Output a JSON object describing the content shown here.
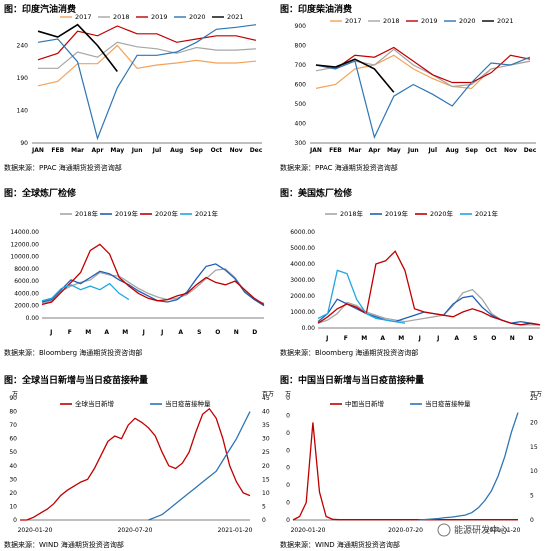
{
  "sources": {
    "ppac": "数据来源：PPAC  海通期货投资咨询部",
    "bloomberg": "数据来源：Bloomberg  海通期货投资咨询部",
    "wind": "数据来源：WIND  海通期货投资咨询部"
  },
  "watermark": "能源研发中心",
  "colors": {
    "y2017": "#f4a259",
    "y2018": "#a6a6a6",
    "y2019": "#c00000",
    "y2020": "#2e75b6",
    "y2021": "#000000",
    "r2018": "#a6a6a6",
    "r2019": "#1f5fb5",
    "r2020": "#c00000",
    "r2021": "#1ea7e1"
  },
  "chart_data": [
    {
      "id": "gasoline",
      "type": "line",
      "title": "图：印度汽油消费",
      "months": [
        "JAN",
        "FEB",
        "Mar",
        "Apr",
        "May",
        "Jun",
        "Jul",
        "Aug",
        "Sep",
        "Oct",
        "Nov",
        "Dec"
      ],
      "yticks": [
        "90",
        "140",
        "190",
        "240"
      ],
      "ylim": [
        90,
        270
      ],
      "legend": [
        "2017",
        "2018",
        "2019",
        "2020",
        "2021"
      ],
      "series": [
        {
          "name": "2017",
          "color_key": "y2017",
          "values": [
            178,
            185,
            212,
            212,
            240,
            205,
            210,
            213,
            217,
            213,
            213,
            216
          ]
        },
        {
          "name": "2018",
          "color_key": "y2018",
          "values": [
            205,
            205,
            230,
            222,
            245,
            238,
            235,
            228,
            237,
            233,
            233,
            235
          ]
        },
        {
          "name": "2019",
          "color_key": "y2019",
          "values": [
            218,
            228,
            262,
            255,
            270,
            258,
            258,
            245,
            250,
            255,
            255,
            248
          ]
        },
        {
          "name": "2020",
          "color_key": "y2020",
          "values": [
            245,
            250,
            215,
            97,
            175,
            225,
            225,
            230,
            245,
            265,
            268,
            272
          ]
        },
        {
          "name": "2021",
          "color_key": "y2021",
          "values": [
            262,
            253,
            272,
            240,
            200
          ]
        }
      ]
    },
    {
      "id": "diesel",
      "type": "line",
      "title": "图：印度柴油消费",
      "months": [
        "JAN",
        "FEB",
        "Mar",
        "Apr",
        "May",
        "Jun",
        "Jul",
        "Aug",
        "Sep",
        "Oct",
        "Nov",
        "Dec"
      ],
      "yticks": [
        "300",
        "400",
        "500",
        "600",
        "700",
        "800",
        "900"
      ],
      "ylim": [
        300,
        900
      ],
      "legend": [
        "2017",
        "2018",
        "2019",
        "2020",
        "2021"
      ],
      "series": [
        {
          "name": "2017",
          "color_key": "y2017",
          "values": [
            580,
            600,
            680,
            700,
            750,
            680,
            630,
            590,
            580,
            680,
            700,
            720
          ]
        },
        {
          "name": "2018",
          "color_key": "y2018",
          "values": [
            670,
            690,
            720,
            700,
            780,
            700,
            650,
            590,
            600,
            680,
            700,
            720
          ]
        },
        {
          "name": "2019",
          "color_key": "y2019",
          "values": [
            700,
            680,
            750,
            740,
            790,
            720,
            650,
            610,
            610,
            660,
            750,
            730
          ]
        },
        {
          "name": "2020",
          "color_key": "y2020",
          "values": [
            700,
            680,
            720,
            330,
            540,
            600,
            550,
            490,
            610,
            710,
            700,
            740
          ]
        },
        {
          "name": "2021",
          "color_key": "y2021",
          "values": [
            700,
            690,
            730,
            680,
            560
          ]
        }
      ]
    },
    {
      "id": "global_maint",
      "type": "line",
      "title": "图：全球炼厂检修",
      "months": [
        "J",
        "F",
        "M",
        "A",
        "M",
        "J",
        "J",
        "A",
        "S",
        "O",
        "N",
        "D"
      ],
      "yticks": [
        "0.00",
        "2000.00",
        "4000.00",
        "6000.00",
        "8000.00",
        "10000.00",
        "12000.00",
        "14000.00"
      ],
      "ylim": [
        0,
        14000
      ],
      "legend": [
        "2018年",
        "2019年",
        "2020年",
        "2021年"
      ],
      "series": [
        {
          "name": "2018年",
          "color_key": "r2018",
          "values": [
            2400,
            2800,
            4400,
            5200,
            5800,
            6200,
            7400,
            7000,
            6800,
            5800,
            4800,
            4000,
            3400,
            3000,
            3200,
            3800,
            5000,
            6400,
            7800,
            8000,
            6600,
            4400,
            3000,
            2400
          ]
        },
        {
          "name": "2019年",
          "color_key": "r2019",
          "values": [
            2600,
            3000,
            4600,
            6200,
            5600,
            6600,
            7600,
            7200,
            6200,
            5400,
            4400,
            3600,
            2800,
            2600,
            3000,
            4200,
            6400,
            8400,
            8800,
            7800,
            6400,
            4200,
            3000,
            2000
          ]
        },
        {
          "name": "2020年",
          "color_key": "r2020",
          "values": [
            2200,
            2600,
            4200,
            5800,
            7400,
            11000,
            12000,
            10400,
            6600,
            5200,
            4000,
            3200,
            2800,
            3000,
            3600,
            4000,
            5400,
            6600,
            5800,
            5400,
            6000,
            4600,
            3200,
            2200
          ]
        },
        {
          "name": "2021年",
          "color_key": "r2021",
          "values": [
            2800,
            3200,
            4800,
            5400,
            4600,
            5200,
            4600,
            5600,
            4000,
            3000
          ]
        }
      ]
    },
    {
      "id": "us_maint",
      "type": "line",
      "title": "图：美国炼厂检修",
      "months": [
        "J",
        "F",
        "M",
        "A",
        "M",
        "J",
        "J",
        "A",
        "S",
        "O",
        "N",
        "D"
      ],
      "yticks": [
        "0.00",
        "1000.00",
        "2000.00",
        "3000.00",
        "4000.00",
        "5000.00",
        "6000.00"
      ],
      "ylim": [
        0,
        6000
      ],
      "legend": [
        "2018年",
        "2019年",
        "2020年",
        "2021年"
      ],
      "series": [
        {
          "name": "2018年",
          "color_key": "r2018",
          "values": [
            300,
            500,
            900,
            1600,
            1400,
            1000,
            800,
            600,
            500,
            400,
            500,
            600,
            700,
            800,
            1400,
            2200,
            2400,
            1800,
            900,
            500,
            300,
            200,
            200,
            200
          ]
        },
        {
          "name": "2019年",
          "color_key": "r2019",
          "values": [
            400,
            900,
            1800,
            1500,
            1200,
            900,
            700,
            500,
            400,
            600,
            800,
            1000,
            900,
            800,
            1500,
            1900,
            2000,
            1300,
            800,
            500,
            300,
            400,
            300,
            200
          ]
        },
        {
          "name": "2020年",
          "color_key": "r2020",
          "values": [
            300,
            700,
            1200,
            1500,
            1300,
            900,
            4000,
            4200,
            4800,
            3600,
            1200,
            1000,
            900,
            800,
            700,
            1000,
            1200,
            1000,
            700,
            500,
            300,
            200,
            300,
            200
          ]
        },
        {
          "name": "2021年",
          "color_key": "r2021",
          "values": [
            600,
            900,
            3600,
            3400,
            1800,
            900,
            600,
            500,
            400,
            300
          ]
        }
      ]
    },
    {
      "id": "global_covid",
      "type": "line",
      "title": "图：全球当日新增与当日疫苗接种量",
      "xticks": [
        "2020-01-20",
        "2020-07-20",
        "2021-01-20"
      ],
      "left_unit": "万",
      "right_unit": "百万",
      "left_yticks": [
        "0",
        "10",
        "20",
        "30",
        "40",
        "50",
        "60",
        "70",
        "80",
        "90"
      ],
      "right_yticks": [
        "0",
        "5",
        "10",
        "15",
        "20",
        "25",
        "30",
        "35",
        "40",
        "45"
      ],
      "ylim_left": [
        0,
        90
      ],
      "ylim_right": [
        0,
        45
      ],
      "legend": [
        "全球当日新增",
        "当日疫苗接种量"
      ],
      "series": [
        {
          "name": "全球当日新增",
          "color_key": "y2019",
          "axis": "left",
          "values": [
            0,
            0,
            2,
            5,
            8,
            12,
            18,
            22,
            25,
            28,
            30,
            38,
            48,
            58,
            62,
            60,
            70,
            75,
            72,
            68,
            62,
            50,
            40,
            38,
            42,
            50,
            65,
            78,
            82,
            75,
            60,
            40,
            28,
            20,
            18
          ]
        },
        {
          "name": "当日疫苗接种量",
          "color_key": "y2020",
          "axis": "right",
          "values": [
            null,
            null,
            null,
            null,
            null,
            null,
            null,
            null,
            null,
            null,
            null,
            null,
            null,
            null,
            null,
            null,
            null,
            null,
            null,
            0,
            1,
            2,
            4,
            6,
            8,
            10,
            12,
            14,
            16,
            18,
            22,
            26,
            30,
            35,
            40
          ]
        }
      ]
    },
    {
      "id": "china_covid",
      "type": "line",
      "title": "图：中国当日新增与当日疫苗接种量",
      "xticks": [
        "2020-01-20",
        "2020-07-20",
        "2021-01-20"
      ],
      "left_unit": "万",
      "right_unit": "百万",
      "left_yticks": [
        "0",
        "0",
        "0",
        "0",
        "0",
        "0",
        "0",
        "0"
      ],
      "right_yticks": [
        "0",
        "5",
        "10",
        "15",
        "20",
        "25"
      ],
      "ylim_left": [
        0,
        3.5
      ],
      "ylim_right": [
        0,
        25
      ],
      "legend": [
        "中国当日新增",
        "当日疫苗接种量"
      ],
      "series": [
        {
          "name": "中国当日新增",
          "color_key": "y2019",
          "axis": "left",
          "values": [
            0,
            0.1,
            0.5,
            2.8,
            0.8,
            0.1,
            0.02,
            0.01,
            0.01,
            0.01,
            0.01,
            0.01,
            0.01,
            0.01,
            0.01,
            0.01,
            0.01,
            0.01,
            0.01,
            0.01,
            0.01,
            0.01,
            0.01,
            0.01,
            0.01,
            0.01,
            0.01,
            0.01,
            0.01,
            0.01,
            0.01,
            0.01,
            0.01,
            0.01,
            0.01
          ]
        },
        {
          "name": "当日疫苗接种量",
          "color_key": "y2020",
          "axis": "right",
          "values": [
            null,
            null,
            null,
            null,
            null,
            null,
            null,
            null,
            null,
            null,
            null,
            null,
            null,
            null,
            null,
            null,
            null,
            null,
            null,
            0,
            0.1,
            0.2,
            0.3,
            0.5,
            0.6,
            0.8,
            1,
            1.5,
            2.5,
            4,
            6,
            9,
            13,
            18,
            22
          ]
        }
      ]
    }
  ]
}
